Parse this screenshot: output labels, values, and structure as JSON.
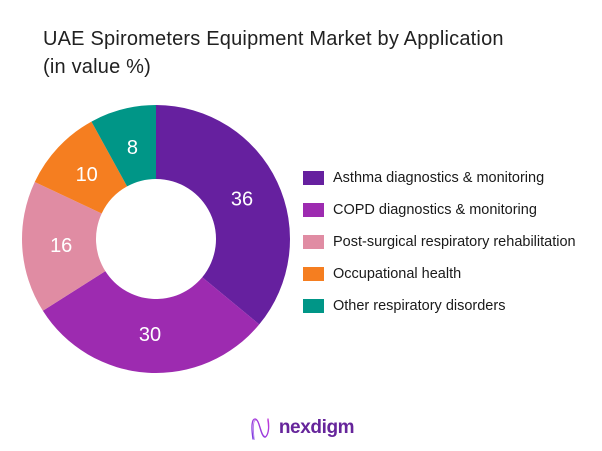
{
  "title": {
    "line1": "UAE Spirometers Equipment Market by Application",
    "line2": "(in value %)"
  },
  "chart_data": {
    "type": "pie",
    "subtype": "donut",
    "title": "UAE Spirometers Equipment Market by Application",
    "subtitle": "(in value %)",
    "unit": "%",
    "direction": "clockwise",
    "start_angle_deg": 0,
    "inner_radius_ratio": 0.45,
    "legend_position": "right",
    "labels_shown": true,
    "label_color": "#ffffff",
    "categories": [
      "Asthma diagnostics & monitoring",
      "COPD diagnostics & monitoring",
      "Post-surgical respiratory rehabilitation",
      "Occupational health",
      "Other respiratory disorders"
    ],
    "values": [
      36,
      30,
      16,
      10,
      8
    ],
    "colors": [
      "#66209F",
      "#9D2BB0",
      "#E08CA3",
      "#F57E20",
      "#009687"
    ]
  },
  "footer": {
    "brand": "nexdigm",
    "logo_icon": "nexdigm-n-wave-icon",
    "brand_color": "#66259b"
  }
}
